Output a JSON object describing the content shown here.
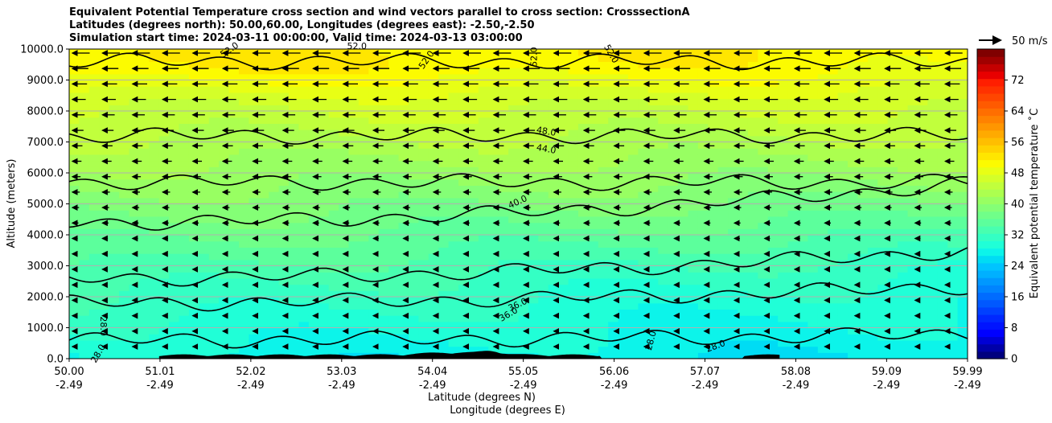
{
  "chart_data": {
    "type": "heatmap",
    "title_lines": [
      "Equivalent Potential Temperature cross section and wind vectors parallel to cross section: CrosssectionA",
      "Latitudes (degrees north): 50.00,60.00, Longitudes (degrees east): -2.50,-2.50",
      "Simulation start time: 2024-03-11 00:00:00, Valid time: 2024-03-13 03:00:00"
    ],
    "ylabel": "Altitude (meters)",
    "xlabel_line1": "Latitude (degrees N)",
    "xlabel_line2": "Longitude (degrees E)",
    "y_ticks": [
      "0.0",
      "1000.0",
      "2000.0",
      "3000.0",
      "4000.0",
      "5000.0",
      "6000.0",
      "7000.0",
      "8000.0",
      "9000.0",
      "10000.0"
    ],
    "ylim": [
      0,
      10000
    ],
    "grid": "horizontal",
    "x_ticks": [
      {
        "lat": "50.00",
        "lon": "-2.49"
      },
      {
        "lat": "51.01",
        "lon": "-2.49"
      },
      {
        "lat": "52.02",
        "lon": "-2.49"
      },
      {
        "lat": "53.03",
        "lon": "-2.49"
      },
      {
        "lat": "54.04",
        "lon": "-2.49"
      },
      {
        "lat": "55.05",
        "lon": "-2.49"
      },
      {
        "lat": "56.06",
        "lon": "-2.49"
      },
      {
        "lat": "57.07",
        "lon": "-2.49"
      },
      {
        "lat": "58.08",
        "lon": "-2.49"
      },
      {
        "lat": "59.09",
        "lon": "-2.49"
      },
      {
        "lat": "59.99",
        "lon": "-2.49"
      }
    ],
    "xlim": [
      50.0,
      59.99
    ],
    "colorbar": {
      "label": "Equivalent potential temperature $^\\circ$C",
      "label_display": "Equivalent potential temperature ˚C",
      "ticks": [
        "0",
        "8",
        "16",
        "24",
        "32",
        "40",
        "48",
        "56",
        "64",
        "72"
      ],
      "range": [
        0,
        80
      ],
      "colors": [
        "#00007f",
        "#0000a9",
        "#0000d4",
        "#0000ff",
        "#0014ff",
        "#0028ff",
        "#0040ff",
        "#0058ff",
        "#006cff",
        "#0084ff",
        "#0098ff",
        "#00b0ff",
        "#00c4ff",
        "#00dcf4",
        "#0cf4ea",
        "#20ffd7",
        "#34ffc4",
        "#48ffb0",
        "#5cff9c",
        "#70ff89",
        "#84ff76",
        "#98ff62",
        "#acff4f",
        "#c1ff3c",
        "#d4ff29",
        "#e8ff15",
        "#fcfb00",
        "#ffe600",
        "#ffd200",
        "#ffbe00",
        "#ffaa00",
        "#ff9600",
        "#ff8200",
        "#ff6e00",
        "#ff5a00",
        "#ff4600",
        "#ff3200",
        "#ff1e00",
        "#e80000",
        "#c40000",
        "#a00000",
        "#800000"
      ]
    },
    "quiver_key": "50 m/s",
    "contour_labels": [
      "52.0",
      "52.0",
      "52.0",
      "52.0",
      "52.0",
      "48.0",
      "44.0",
      "40.0",
      "36.0",
      "36.0",
      "28.0",
      "28.0",
      "28.0",
      "28.0"
    ],
    "contour_levels": [
      28,
      32,
      36,
      40,
      44,
      48,
      52
    ],
    "wind_direction": "southward along section (left-pointing)",
    "field_description_levels": {
      "surface_to_1500m": 28,
      "1500_to_3000m": 33,
      "3000_to_5000m": 38,
      "5000_to_7000m": 42,
      "7000_to_9000m": 46,
      "9000_to_10000m": 50
    }
  }
}
